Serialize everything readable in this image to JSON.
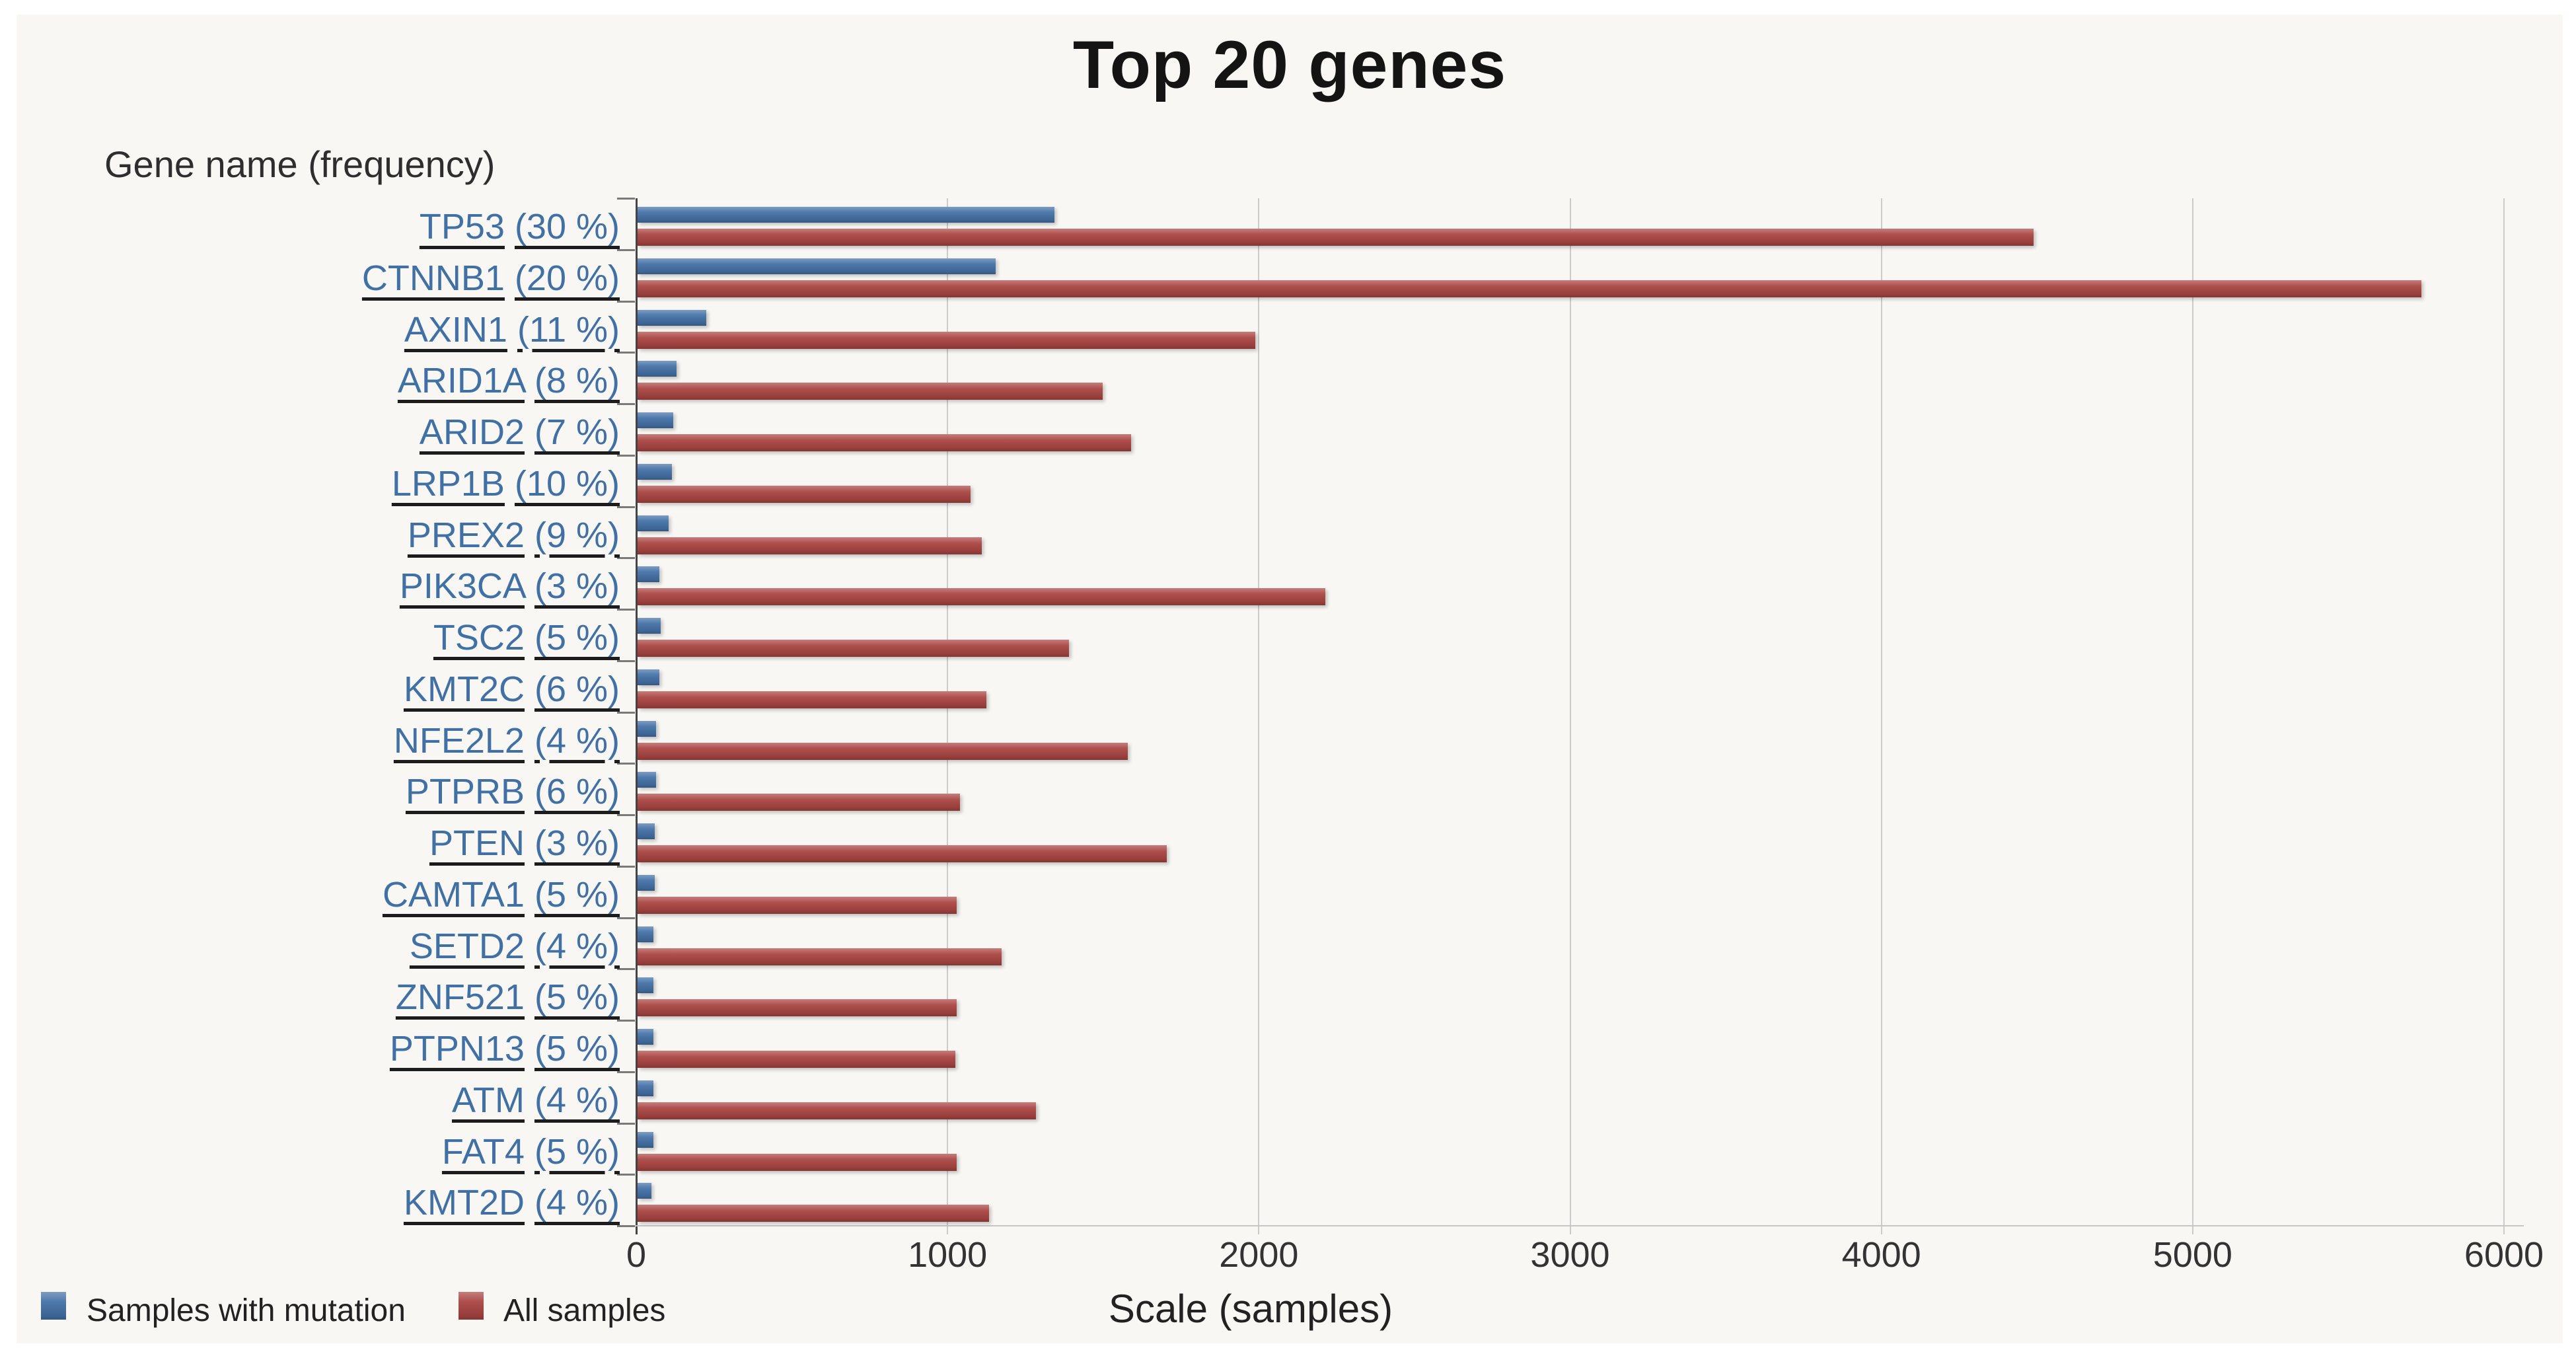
{
  "title": "Top 20 genes",
  "y_axis_header": "Gene name (frequency)",
  "x_axis_title": "Scale (samples)",
  "colors": {
    "mutation_blue": "#4572a7",
    "all_samples_red": "#aa4643",
    "gene_link": "#4170a4",
    "gene_underline": "#1c1c1c",
    "chart_background": "#f8f7f4",
    "gridline": "#cccccc",
    "y_axis_line": "#454545",
    "x_axis_line": "#c6c6c6",
    "tick_text": "#333333"
  },
  "legend": {
    "items": [
      {
        "label": "Samples with mutation",
        "color": "#4572a7"
      },
      {
        "label": "All samples",
        "color": "#aa4643"
      }
    ]
  },
  "chart_data": {
    "type": "bar",
    "orientation": "horizontal",
    "title": "Top 20 genes",
    "xlabel": "Scale (samples)",
    "ylabel": "Gene name (frequency)",
    "x_axis": {
      "min": 0,
      "max": 6000,
      "ticks": [
        0,
        1000,
        2000,
        3000,
        4000,
        5000,
        6000
      ]
    },
    "grid": true,
    "legend_position": "bottom-left",
    "series_names": [
      "Samples with mutation",
      "All samples"
    ],
    "categories": [
      {
        "gene": "TP53",
        "frequency": "(30 %)",
        "samples_with_mutation": 1340,
        "all_samples": 4485
      },
      {
        "gene": "CTNNB1",
        "frequency": "(20 %)",
        "samples_with_mutation": 1150,
        "all_samples": 5730
      },
      {
        "gene": "AXIN1",
        "frequency": "(11 %)",
        "samples_with_mutation": 220,
        "all_samples": 1985
      },
      {
        "gene": "ARID1A",
        "frequency": "(8 %)",
        "samples_with_mutation": 125,
        "all_samples": 1495
      },
      {
        "gene": "ARID2",
        "frequency": "(7 %)",
        "samples_with_mutation": 115,
        "all_samples": 1585
      },
      {
        "gene": "LRP1B",
        "frequency": "(10 %)",
        "samples_with_mutation": 110,
        "all_samples": 1070
      },
      {
        "gene": "PREX2",
        "frequency": "(9 %)",
        "samples_with_mutation": 100,
        "all_samples": 1105
      },
      {
        "gene": "PIK3CA",
        "frequency": "(3 %)",
        "samples_with_mutation": 70,
        "all_samples": 2210
      },
      {
        "gene": "TSC2",
        "frequency": "(5 %)",
        "samples_with_mutation": 75,
        "all_samples": 1385
      },
      {
        "gene": "KMT2C",
        "frequency": "(6 %)",
        "samples_with_mutation": 70,
        "all_samples": 1120
      },
      {
        "gene": "NFE2L2",
        "frequency": "(4 %)",
        "samples_with_mutation": 60,
        "all_samples": 1575
      },
      {
        "gene": "PTPRB",
        "frequency": "(6 %)",
        "samples_with_mutation": 60,
        "all_samples": 1035
      },
      {
        "gene": "PTEN",
        "frequency": "(3 %)",
        "samples_with_mutation": 55,
        "all_samples": 1700
      },
      {
        "gene": "CAMTA1",
        "frequency": "(5 %)",
        "samples_with_mutation": 55,
        "all_samples": 1025
      },
      {
        "gene": "SETD2",
        "frequency": "(4 %)",
        "samples_with_mutation": 50,
        "all_samples": 1170
      },
      {
        "gene": "ZNF521",
        "frequency": "(5 %)",
        "samples_with_mutation": 50,
        "all_samples": 1025
      },
      {
        "gene": "PTPN13",
        "frequency": "(5 %)",
        "samples_with_mutation": 50,
        "all_samples": 1020
      },
      {
        "gene": "ATM",
        "frequency": "(4 %)",
        "samples_with_mutation": 50,
        "all_samples": 1280
      },
      {
        "gene": "FAT4",
        "frequency": "(5 %)",
        "samples_with_mutation": 50,
        "all_samples": 1025
      },
      {
        "gene": "KMT2D",
        "frequency": "(4 %)",
        "samples_with_mutation": 45,
        "all_samples": 1130
      }
    ]
  }
}
